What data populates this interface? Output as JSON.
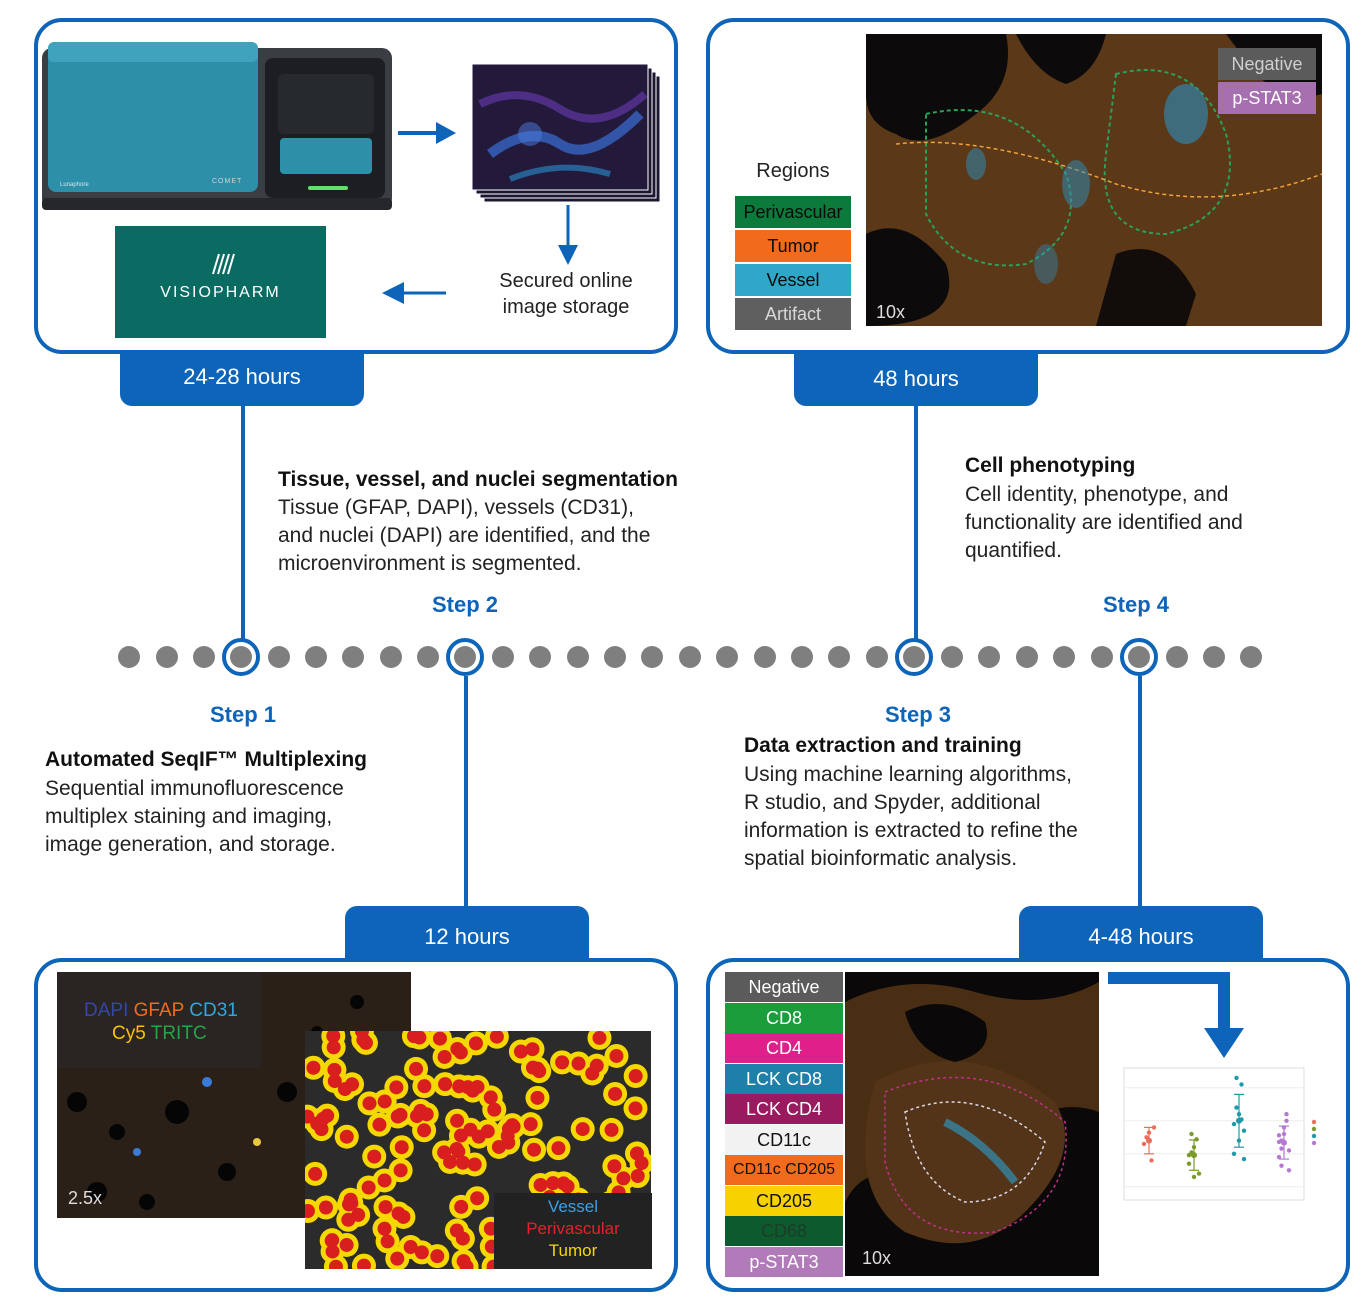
{
  "colors": {
    "accent": "#0d64b8",
    "dot": "#7f7f7f",
    "visiopharm_bg": "#0a6b63",
    "instrument": "#2e8fa8"
  },
  "panels": {
    "p1": {
      "time": "24-28 hours",
      "storage_label": "Secured online\nimage storage",
      "logo_text": "VISIOPHARM",
      "instrument_brand": "COMET"
    },
    "p2": {
      "time": "48 hours",
      "regions_title": "Regions",
      "regions": [
        "Perivascular",
        "Tumor",
        "Vessel",
        "Artifact"
      ],
      "region_colors": [
        "#0b7a3a",
        "#f26a1b",
        "#2ea7c9",
        "#5f5f5f"
      ],
      "overlay_labels": [
        "Negative",
        "p-STAT3"
      ],
      "overlay_colors": [
        "#5b5b5b",
        "#a66fb0"
      ],
      "magnification": "10x"
    },
    "p3": {
      "time": "12 hours",
      "markers_line1": [
        "DAPI",
        "GFAP",
        "CD31"
      ],
      "markers_line1_colors": [
        "#3347a8",
        "#f26a1b",
        "#2ea7e0"
      ],
      "markers_line2": [
        "Cy5",
        "TRITC"
      ],
      "markers_line2_colors": [
        "#f7c200",
        "#27a34a"
      ],
      "magnification": "2.5x",
      "seg_legend": [
        "Vessel",
        "Perivascular",
        "Tumor"
      ],
      "seg_legend_colors": [
        "#3aa0e8",
        "#e8202a",
        "#f5d800"
      ]
    },
    "p4": {
      "time": "4-48 hours",
      "phenotypes": [
        "Negative",
        "CD8",
        "CD4",
        "LCK CD8",
        "LCK CD4",
        "CD11c",
        "CD11c CD205",
        "CD205",
        "CD68",
        "p-STAT3"
      ],
      "phenotype_colors": [
        "#5b5b5b",
        "#1a9e3c",
        "#e0208a",
        "#1e7fa8",
        "#9a1a5f",
        "#f2f2f2",
        "#f26a1b",
        "#f7d200",
        "#0d5a2e",
        "#b07bb8"
      ],
      "phenotype_text_colors": [
        "#ffffff",
        "#ffffff",
        "#ffffff",
        "#ffffff",
        "#ffffff",
        "#111111",
        "#111111",
        "#111111",
        "#1c3d28",
        "#ffffff"
      ],
      "magnification": "10x"
    }
  },
  "steps": {
    "s1": {
      "label": "Step 1",
      "title": "Automated SeqIF™ Multiplexing",
      "desc": "Sequential immunofluorescence\nmultiplex staining and imaging,\nimage generation, and storage."
    },
    "s2": {
      "label": "Step 2",
      "title": "Tissue, vessel, and nuclei segmentation",
      "desc": "Tissue (GFAP, DAPI), vessels (CD31),\nand nuclei (DAPI) are identified, and the\nmicroenvironment is segmented."
    },
    "s3": {
      "label": "Step 3",
      "title": "Data extraction and training",
      "desc": "Using machine learning algorithms,\nR studio, and Spyder, additional\ninformation is extracted to refine the\nspatial bioinformatic analysis."
    },
    "s4": {
      "label": "Step 4",
      "title": "Cell phenotyping",
      "desc": "Cell identity, phenotype, and\nfunctionality are identified and\nquantified."
    }
  },
  "plot": {
    "group_colors": [
      "#e8705a",
      "#7a9a2a",
      "#1f9aa8",
      "#b57ad0"
    ],
    "group_values": [
      [
        16.5,
        17.5,
        18.2,
        14.0,
        19.0
      ],
      [
        13.5,
        15.2,
        16.0,
        17.2,
        12.0,
        14.8,
        18.0,
        11.5
      ],
      [
        19.5,
        22.0,
        17.0,
        25.5,
        18.5,
        15.0,
        26.5,
        21.0,
        20.2,
        14.2
      ],
      [
        14.5,
        17.0,
        19.0,
        20.0,
        15.5,
        16.8,
        13.2,
        18.0,
        21.0,
        12.5,
        17.8,
        15.8
      ]
    ],
    "group_means": [
      17.0,
      14.8,
      20.0,
      16.7
    ],
    "group_err": [
      2.0,
      2.3,
      4.0,
      2.5
    ]
  }
}
